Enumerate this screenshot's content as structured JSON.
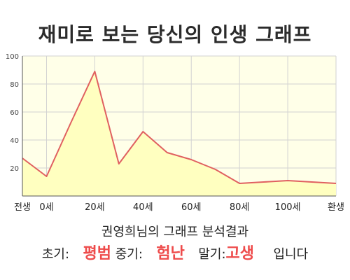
{
  "chart_data": {
    "type": "area",
    "title": "재미로 보는 당신의 인생 그래프",
    "x": [
      -10,
      0,
      10,
      20,
      30,
      40,
      50,
      60,
      70,
      80,
      90,
      100,
      110,
      120
    ],
    "xticks": [
      {
        "x": -10,
        "label": "전생"
      },
      {
        "x": 0,
        "label": "0세"
      },
      {
        "x": 20,
        "label": "20세"
      },
      {
        "x": 40,
        "label": "40세"
      },
      {
        "x": 60,
        "label": "60세"
      },
      {
        "x": 80,
        "label": "80세"
      },
      {
        "x": 100,
        "label": "100세"
      },
      {
        "x": 120,
        "label": "환생"
      }
    ],
    "values": [
      27,
      14,
      52,
      89,
      23,
      46,
      31,
      26,
      19,
      9,
      10,
      11,
      10,
      9
    ],
    "xlim": [
      -10,
      120
    ],
    "ylim": [
      0,
      100
    ],
    "yticks": [
      20,
      40,
      60,
      80,
      100
    ],
    "grid": true,
    "colors": {
      "line": "#e06060",
      "fill": "#ffffc0",
      "plot_bg": "#ffffe8",
      "grid": "#d2d2d2",
      "axis": "#555555"
    }
  },
  "subtitle": "권영희님의 그래프 분석결과",
  "verdict": {
    "early_label": "초기:",
    "early_value": "평범",
    "mid_label": "중기:",
    "mid_value": "험난",
    "late_label": "말기:",
    "late_value": "고생",
    "ending": "입니다"
  }
}
